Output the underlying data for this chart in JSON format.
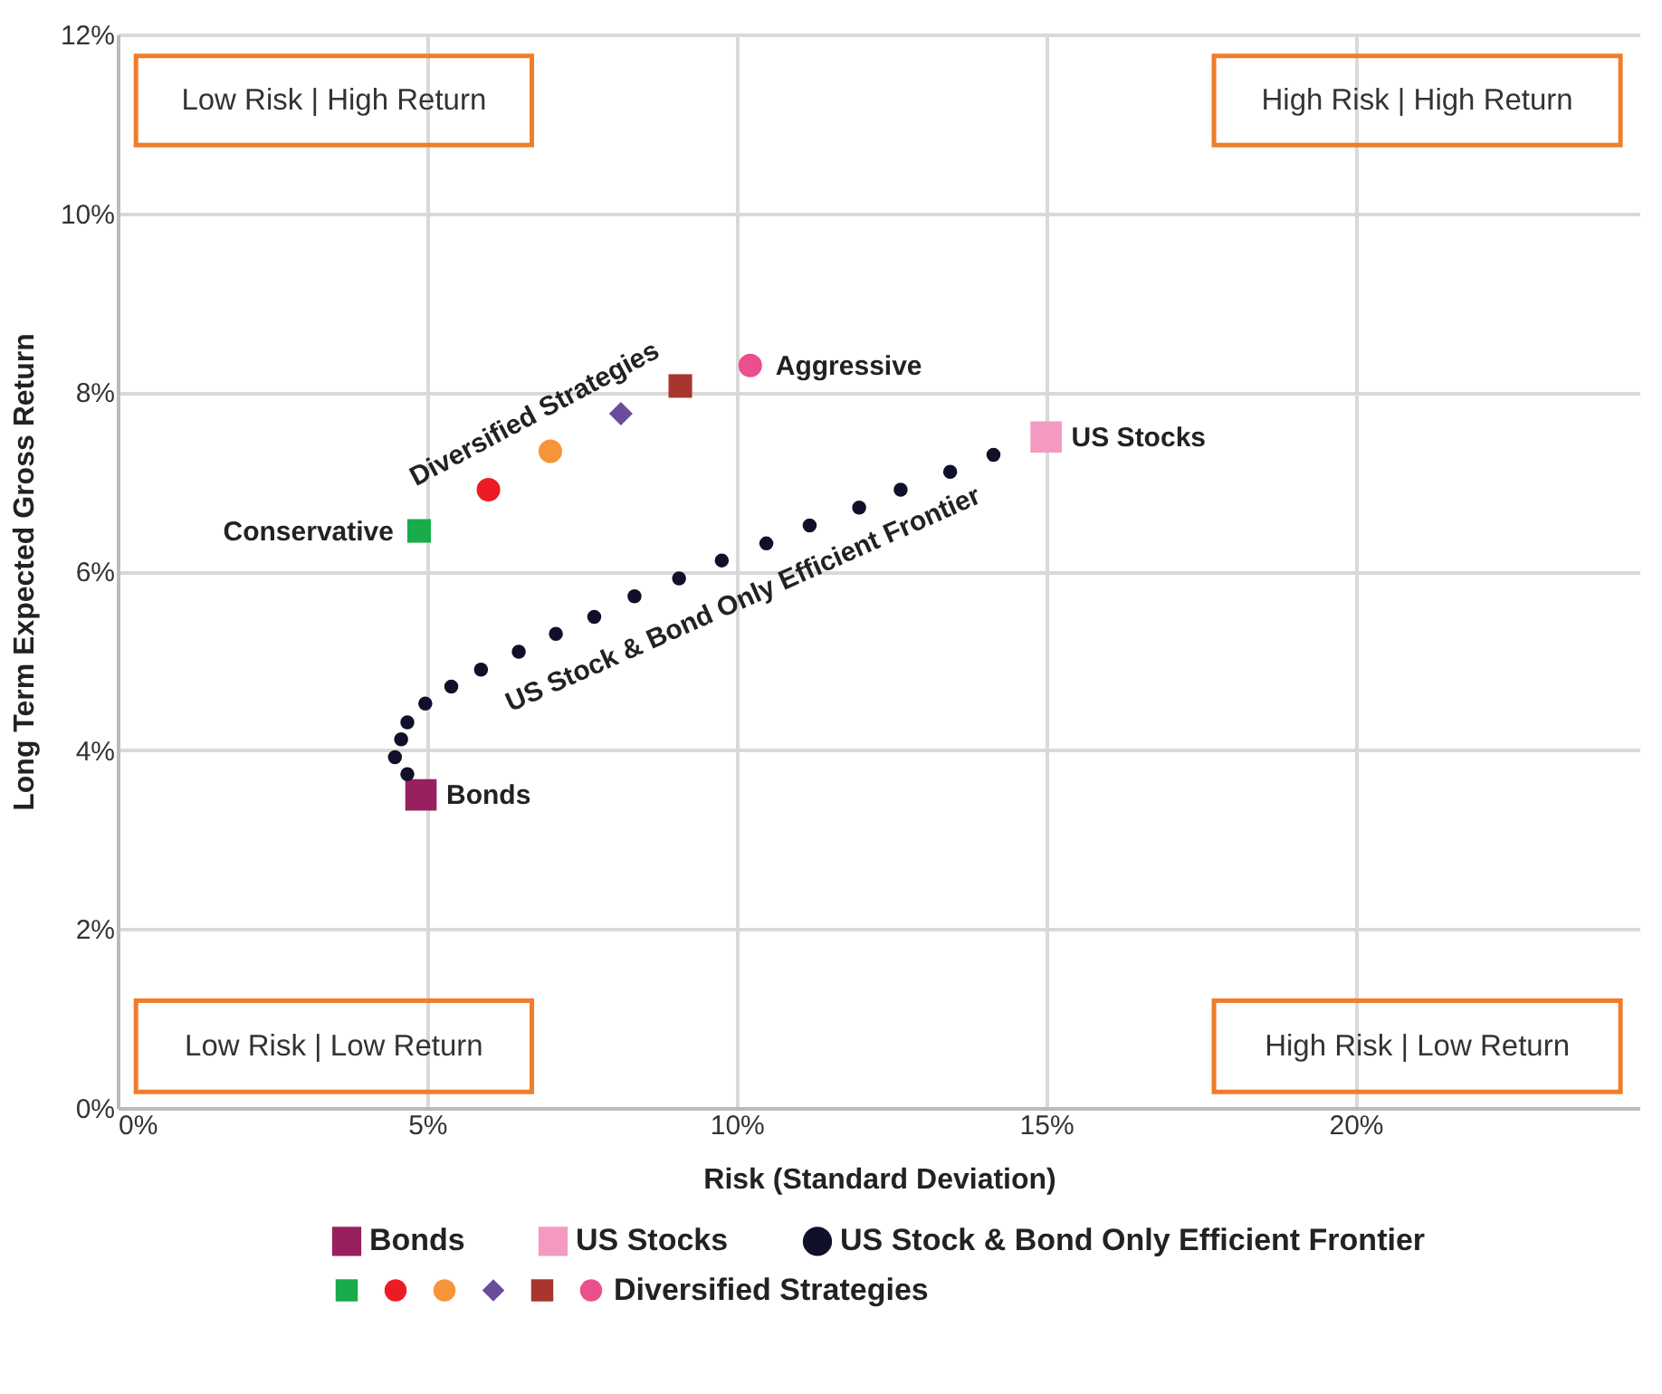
{
  "chart_data": {
    "type": "scatter",
    "xlabel": "Risk (Standard Deviation)",
    "ylabel": "Long Term Expected Gross Return",
    "xlim": [
      0,
      24.6
    ],
    "ylim": [
      0,
      12
    ],
    "xticks": [
      {
        "value": 0,
        "label": "0%"
      },
      {
        "value": 5,
        "label": "5%"
      },
      {
        "value": 10,
        "label": "10%"
      },
      {
        "value": 15,
        "label": "15%"
      },
      {
        "value": 20,
        "label": "20%"
      }
    ],
    "yticks": [
      {
        "value": 0,
        "label": "0%"
      },
      {
        "value": 2,
        "label": "2%"
      },
      {
        "value": 4,
        "label": "4%"
      },
      {
        "value": 6,
        "label": "6%"
      },
      {
        "value": 8,
        "label": "8%"
      },
      {
        "value": 10,
        "label": "10%"
      },
      {
        "value": 12,
        "label": "12%"
      }
    ],
    "grid": true,
    "legend": "bottom",
    "series": [
      {
        "name": "Bonds",
        "color": "#98205f",
        "marker": "square",
        "x": [
          4.9
        ],
        "values": [
          3.5
        ]
      },
      {
        "name": "US Stocks",
        "color": "#f49ac2",
        "marker": "square",
        "x": [
          15
        ],
        "values": [
          7.5
        ]
      },
      {
        "name": "US Stock & Bond Only Efficient Frontier",
        "color": "#10102a",
        "marker": "circle",
        "x": [
          4.68,
          4.48,
          4.58,
          4.68,
          4.97,
          5.39,
          5.87,
          6.48,
          7.08,
          7.7,
          8.35,
          9.07,
          9.76,
          10.48,
          11.18,
          11.98,
          12.65,
          13.45,
          14.15
        ],
        "values": [
          3.73,
          3.92,
          4.12,
          4.31,
          4.52,
          4.71,
          4.9,
          5.1,
          5.3,
          5.49,
          5.72,
          5.92,
          6.12,
          6.31,
          6.51,
          6.71,
          6.91,
          7.11,
          7.3
        ]
      },
      {
        "name": "Diversified Strategies",
        "colors": [
          "#1aab4b",
          "#ed1c24",
          "#f7943a",
          "#6b4c9a",
          "#a8362f",
          "#ec4f8e"
        ],
        "marker": [
          "square",
          "circle",
          "circle",
          "diamond",
          "square",
          "circle"
        ],
        "x": [
          4.87,
          5.99,
          6.99,
          8.13,
          9.09,
          10.22
        ],
        "values": [
          6.45,
          6.91,
          7.34,
          7.76,
          8.07,
          8.3
        ]
      }
    ],
    "annotations": [
      "Low Risk | High Return",
      "High Risk | High Return",
      "Low Risk | Low Return",
      "High Risk | Low Return",
      {
        "text": "Conservative",
        "x": 4.87,
        "y": 6.45
      },
      {
        "text": "Aggressive",
        "x": 10.22,
        "y": 8.3
      },
      "Diversified Strategies"
    ]
  }
}
